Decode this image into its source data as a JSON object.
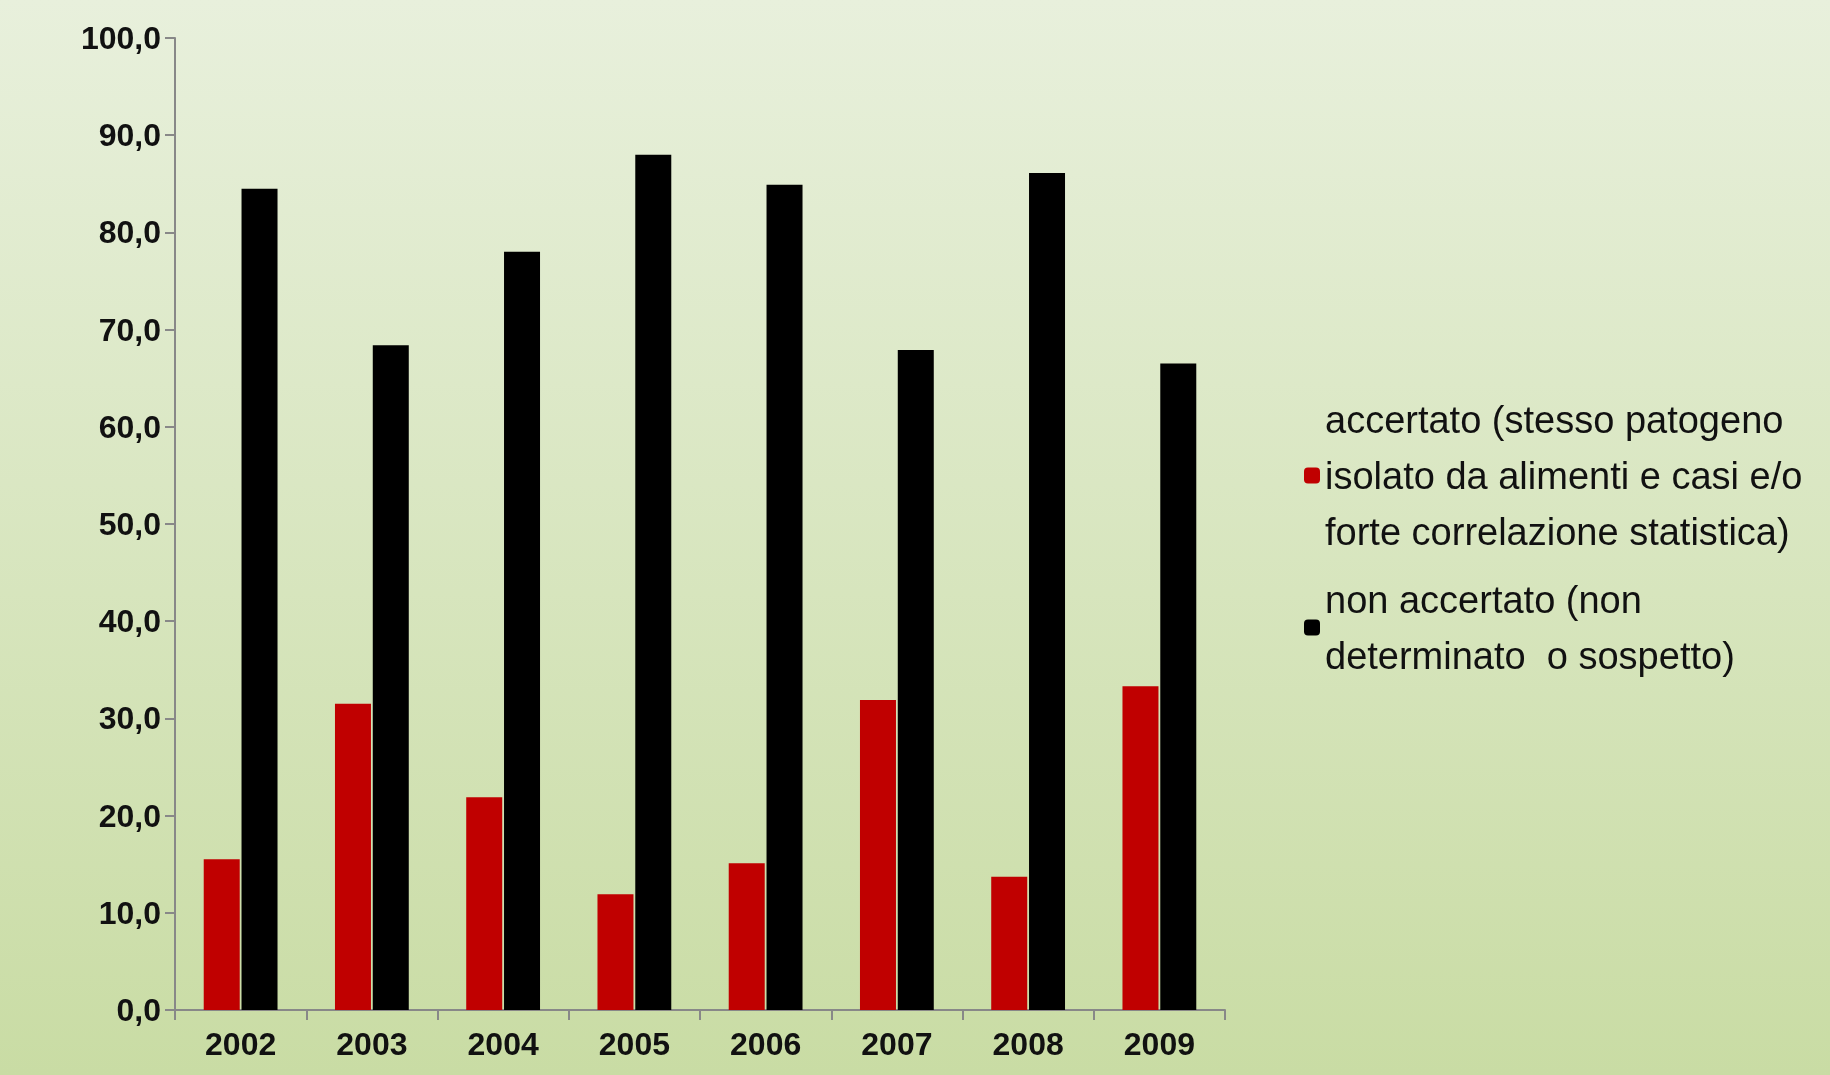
{
  "chart_data": {
    "type": "bar",
    "categories": [
      "2002",
      "2003",
      "2004",
      "2005",
      "2006",
      "2007",
      "2008",
      "2009"
    ],
    "series": [
      {
        "name": "accertato (stesso patogeno isolato da alimenti e casi e/o forte correlazione statistica)",
        "color": "#c00000",
        "values": [
          15.5,
          31.5,
          21.9,
          11.9,
          15.1,
          31.9,
          13.7,
          33.3
        ]
      },
      {
        "name": "non accertato (non determinato  o sospetto)",
        "color": "#000000",
        "values": [
          84.5,
          68.4,
          78.0,
          88.0,
          84.9,
          67.9,
          86.1,
          66.5
        ]
      }
    ],
    "ylim": [
      0,
      100
    ],
    "yticks": [
      {
        "value": 0,
        "label": "0,0"
      },
      {
        "value": 10,
        "label": "10,0"
      },
      {
        "value": 20,
        "label": "20,0"
      },
      {
        "value": 30,
        "label": "30,0"
      },
      {
        "value": 40,
        "label": "40,0"
      },
      {
        "value": 50,
        "label": "50,0"
      },
      {
        "value": 60,
        "label": "60,0"
      },
      {
        "value": 70,
        "label": "70,0"
      },
      {
        "value": 80,
        "label": "80,0"
      },
      {
        "value": 90,
        "label": "90,0"
      },
      {
        "value": 100,
        "label": "100,0"
      }
    ],
    "grid": false,
    "legend": "right"
  }
}
